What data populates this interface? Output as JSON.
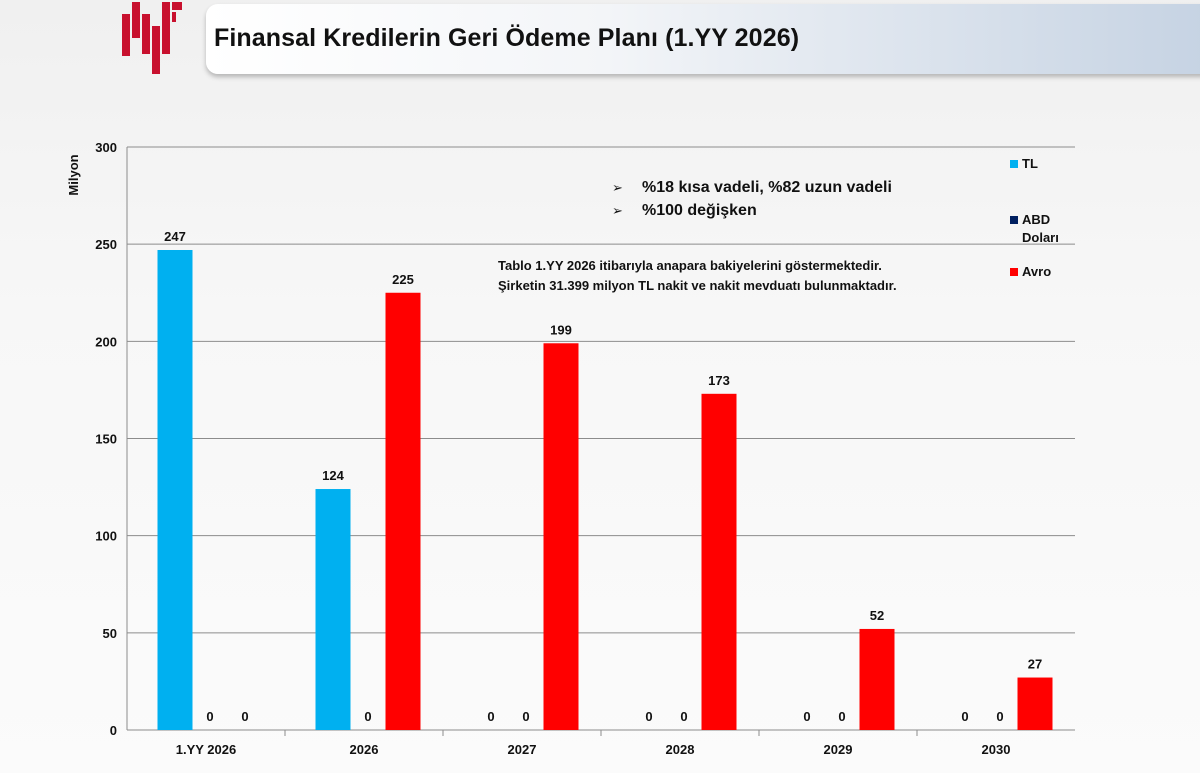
{
  "header": {
    "title": "Finansal Kredilerin Geri Ödeme Planı (1.YY 2026)",
    "logo_icon": "company-logo-red",
    "logo_color": "#c8102e"
  },
  "notes": [
    "%18 kısa vadeli, %82 uzun vadeli",
    "%100 değişken"
  ],
  "info": {
    "line1": "Tablo 1.YY 2026 itibarıyla anapara bakiyelerini göstermektedir.",
    "line2": "Şirketin 31.399 milyon TL nakit ve nakit mevduatı bulunmaktadır."
  },
  "chart_data": {
    "type": "bar",
    "ylabel": "Milyon",
    "ylim": [
      0,
      300
    ],
    "yticks": [
      0,
      50,
      100,
      150,
      200,
      250,
      300
    ],
    "grid": true,
    "legend_position": "right",
    "categories": [
      "1.YY 2026",
      "2026",
      "2027",
      "2028",
      "2029",
      "2030"
    ],
    "series": [
      {
        "name": "TL",
        "color": "#00b0f0",
        "values": [
          247,
          124,
          0,
          0,
          0,
          0
        ]
      },
      {
        "name": "ABD Doları",
        "color": "#002060",
        "values": [
          0,
          0,
          0,
          0,
          0,
          0
        ]
      },
      {
        "name": "Avro",
        "color": "#ff0000",
        "values": [
          0,
          225,
          199,
          173,
          52,
          27
        ]
      }
    ]
  }
}
